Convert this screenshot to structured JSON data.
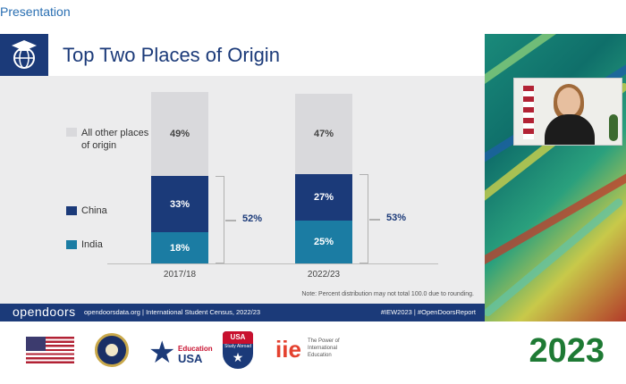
{
  "window": {
    "title": "Presentation"
  },
  "slide": {
    "title": "Top Two Places of Origin",
    "note": "Note: Percent distribution may not total 100.0 due to rounding.",
    "legend": [
      {
        "label": "All other places\nof origin",
        "color": "#d9d9dc"
      },
      {
        "label": "China",
        "color": "#1b3a79"
      },
      {
        "label": "India",
        "color": "#1b7ca3"
      }
    ],
    "footer": {
      "brand": "opendoors",
      "info": "opendoorsdata.org  |  International Student Census, 2022/23",
      "tags": "#IEW2023  |  #OpenDoorsReport"
    }
  },
  "chart_data": {
    "type": "bar",
    "stacked": true,
    "categories": [
      "2017/18",
      "2022/23"
    ],
    "series": [
      {
        "name": "India",
        "values": [
          18,
          25
        ],
        "color": "#1b7ca3"
      },
      {
        "name": "China",
        "values": [
          33,
          27
        ],
        "color": "#1b3a79"
      },
      {
        "name": "All other places of origin",
        "values": [
          49,
          47
        ],
        "color": "#d9d9dc"
      }
    ],
    "value_labels": [
      [
        "18%",
        "33%",
        "49%"
      ],
      [
        "25%",
        "27%",
        "47%"
      ]
    ],
    "bracket_totals": [
      "52%",
      "53%"
    ],
    "ylim": [
      0,
      100
    ],
    "grid": false,
    "legend_position": "left"
  },
  "logos": {
    "education_usa": {
      "line1": "Education",
      "line2": "USA"
    },
    "study_abroad": {
      "line1": "USA",
      "line2": "Study Abroad"
    },
    "iie": {
      "mark": "iie",
      "tagline": "The Power of International Education"
    },
    "year": "2023"
  },
  "colors": {
    "brand_navy": "#1b3a79",
    "brand_teal": "#1b7ca3",
    "year_green": "#1e7a34",
    "title_blue": "#2a6fb2"
  }
}
